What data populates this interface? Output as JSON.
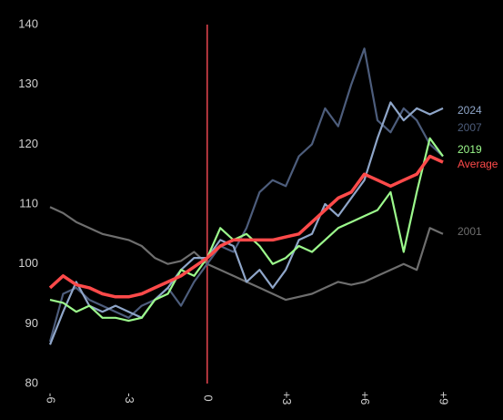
{
  "chart_data": {
    "type": "line",
    "x": [
      -6,
      -5.5,
      -5,
      -4.5,
      -4,
      -3.5,
      -3,
      -2.5,
      -2,
      -1.5,
      -1,
      -0.5,
      0,
      0.5,
      1,
      1.5,
      2,
      2.5,
      3,
      3.5,
      4,
      4.5,
      5,
      5.5,
      6,
      6.5,
      7,
      7.5,
      8,
      8.5,
      9
    ],
    "xlim": [
      -6,
      9
    ],
    "xticks": [
      -6,
      -3,
      0,
      {
        "value": 3,
        "label": "+3"
      },
      {
        "value": 6,
        "label": "+6"
      },
      {
        "value": 9,
        "label": "+9"
      }
    ],
    "ylim": [
      80,
      140
    ],
    "yticks": [
      80,
      90,
      100,
      110,
      120,
      130,
      140
    ],
    "vline": 0,
    "vline_color": "#e8454f",
    "series": [
      {
        "name": "2001",
        "color": "#6e6e6e",
        "values": [
          109.5,
          108.5,
          107,
          106,
          105,
          104.5,
          104,
          103,
          101,
          100,
          100.5,
          102,
          100,
          99,
          98,
          97,
          96,
          95,
          94,
          94.5,
          95,
          96,
          97,
          96.5,
          97,
          98,
          99,
          100,
          99,
          106,
          105
        ]
      },
      {
        "name": "2007",
        "color": "#4d5d7c",
        "values": [
          87,
          95,
          96,
          94,
          93,
          92,
          91,
          93,
          94,
          96,
          93,
          97,
          100,
          103,
          102,
          106,
          112,
          114,
          113,
          118,
          120,
          126,
          123,
          130,
          136,
          124,
          122,
          126,
          124,
          120,
          118
        ]
      },
      {
        "name": "2024",
        "color": "#8fa6c9",
        "values": [
          86.5,
          92,
          97,
          93,
          92,
          93,
          92,
          91,
          94,
          96,
          99,
          101,
          101,
          104,
          103,
          97,
          99,
          96,
          99,
          104,
          105,
          110,
          108,
          111,
          114,
          121,
          127,
          124,
          126,
          125,
          126
        ]
      },
      {
        "name": "2019",
        "color": "#9cfa8c",
        "values": [
          94,
          93.5,
          92,
          93,
          91,
          91,
          90.5,
          91,
          94,
          95,
          99,
          98,
          101,
          106,
          104,
          105,
          103,
          100,
          101,
          103,
          102,
          104,
          106,
          107,
          108,
          109,
          112,
          102,
          112,
          121,
          118
        ]
      },
      {
        "name": "Average",
        "color": "#ff4a4a",
        "values": [
          96,
          98,
          96.5,
          96,
          95,
          94.5,
          94.5,
          95,
          96,
          97,
          98,
          99.5,
          101,
          103,
          104,
          104,
          104,
          104,
          104.5,
          105,
          107,
          109,
          111,
          112,
          115,
          114,
          113,
          114,
          115,
          118,
          117
        ]
      }
    ]
  }
}
